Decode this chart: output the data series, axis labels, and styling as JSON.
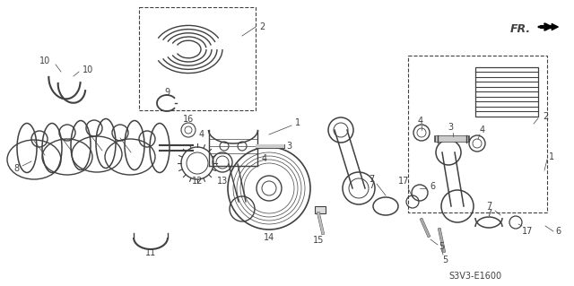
{
  "bg_color": "#ffffff",
  "line_color": "#404040",
  "fig_width": 6.4,
  "fig_height": 3.19,
  "dpi": 100,
  "model_code": "S3V3-E1600"
}
